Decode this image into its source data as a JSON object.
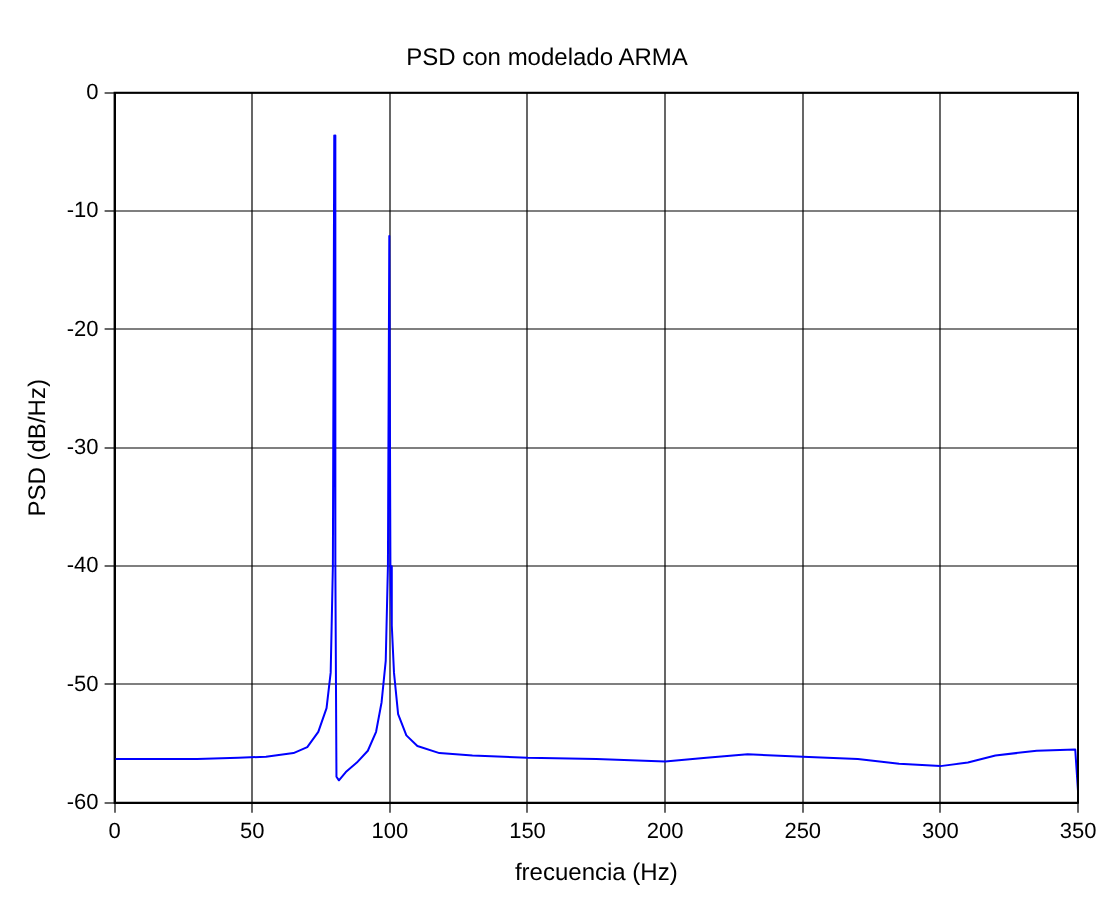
{
  "chart_data": {
    "type": "line",
    "title": "PSD con modelado ARMA",
    "xlabel": "frecuencia (Hz)",
    "ylabel": "PSD (dB/Hz)",
    "x": [
      0,
      30,
      45,
      55,
      65,
      70,
      74,
      77,
      78.5,
      79.3,
      79.8,
      80.2,
      80.6,
      81.5,
      84,
      88,
      92,
      95,
      97,
      98.5,
      99.3,
      99.8,
      100.2,
      100.7,
      101.5,
      103,
      106,
      110,
      118,
      130,
      150,
      175,
      200,
      215,
      230,
      250,
      270,
      285,
      300,
      310,
      320,
      335,
      349,
      350
    ],
    "series": [
      {
        "color": "#0000ff",
        "values": [
          -56.3,
          -56.3,
          -56.2,
          -56.1,
          -55.8,
          -55.3,
          -54,
          -52,
          -49,
          -40,
          -3.6,
          -40,
          -57.8,
          -58.1,
          -57.4,
          -56.6,
          -55.6,
          -54,
          -51.5,
          -48,
          -40,
          -12.1,
          -40,
          -45,
          -49,
          -52.5,
          -54.3,
          -55.2,
          -55.8,
          -56,
          -56.2,
          -56.3,
          -56.5,
          -56.2,
          -55.9,
          -56.1,
          -56.3,
          -56.7,
          -56.9,
          -56.6,
          -56,
          -55.6,
          -55.5,
          -59
        ]
      }
    ],
    "xlim": [
      0,
      350
    ],
    "xticks": [
      0,
      50,
      100,
      150,
      200,
      250,
      300,
      350
    ],
    "ylim": [
      -60,
      0
    ],
    "yticks": [
      -60,
      -50,
      -40,
      -30,
      -20,
      -10,
      0
    ],
    "grid": true,
    "legend": false,
    "marker": "none",
    "line_style": "solid"
  }
}
